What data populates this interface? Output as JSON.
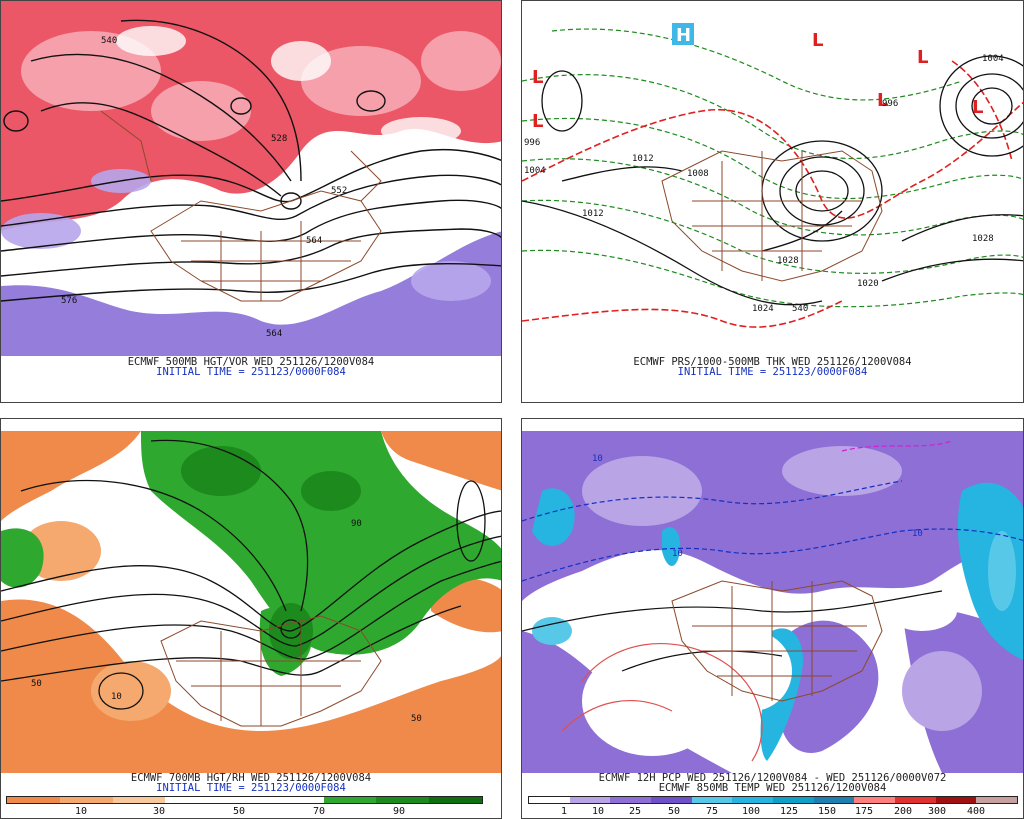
{
  "panels": [
    {
      "id": "tl",
      "caption1": "ECMWF 500MB HGT/VOR WED 251126/1200V084",
      "caption2": "INITIAL TIME = 251123/0000F084",
      "labels": [
        "540",
        "528",
        "552",
        "564",
        "576",
        "564"
      ]
    },
    {
      "id": "tr",
      "caption1": "ECMWF PRS/1000-500MB THK WED 251126/1200V084",
      "caption2": "INITIAL TIME = 251123/0000F084",
      "labels": [
        "1012",
        "1008",
        "1004",
        "1028",
        "1020",
        "1012",
        "996",
        "540",
        "1028",
        "1024",
        "996",
        "1004"
      ],
      "markers": [
        "L",
        "L",
        "L",
        "L",
        "L",
        "L",
        "H"
      ]
    },
    {
      "id": "bl",
      "caption1": "ECMWF 700MB HGT/RH WED 251126/1200V084",
      "caption2": "INITIAL TIME = 251123/0000F084",
      "colorbar_ticks": [
        "10",
        "30",
        "50",
        "70",
        "90"
      ],
      "colorbar_colors": [
        "#ef8a4a",
        "#f5a96e",
        "#f8c89e",
        "#ffffff",
        "#ffffff",
        "#ffffff",
        "#2fa82f",
        "#1c8a1c",
        "#0f6f0f"
      ]
    },
    {
      "id": "br",
      "caption1": "ECMWF 12H PCP WED 251126/1200V084 - WED 251126/0000V072",
      "caption2": "ECMWF 850MB TEMP WED 251126/1200V084",
      "colorbar_ticks": [
        "1",
        "10",
        "25",
        "50",
        "75",
        "100",
        "125",
        "150",
        "175",
        "200",
        "300",
        "400"
      ],
      "colorbar_colors": [
        "#ffffff",
        "#b9a4e6",
        "#8d6fd6",
        "#6f52c9",
        "#58c8e8",
        "#25b5e0",
        "#0fa0c8",
        "#1f7fb0",
        "#ff7f7f",
        "#e03030",
        "#a01010",
        "#c8a0a0"
      ]
    }
  ]
}
